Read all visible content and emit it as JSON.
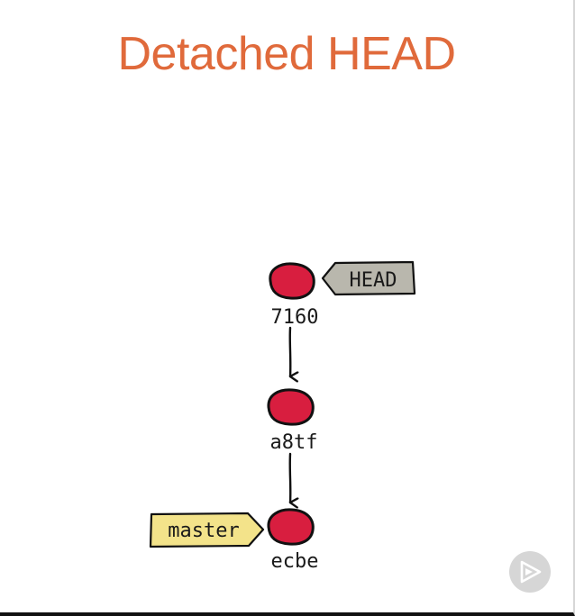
{
  "title": "Detached HEAD",
  "commits": [
    {
      "id": "7160"
    },
    {
      "id": "a8tf"
    },
    {
      "id": "ecbe"
    }
  ],
  "refs": {
    "head": {
      "label": "HEAD",
      "points_to": "7160",
      "color": "#b9b7ad"
    },
    "master": {
      "label": "master",
      "points_to": "ecbe",
      "color": "#f3e38a"
    }
  },
  "colors": {
    "title": "#e06a3b",
    "commit_fill": "#d81e3f",
    "outline": "#111111"
  },
  "controls": {
    "play_icon": "play-icon"
  }
}
